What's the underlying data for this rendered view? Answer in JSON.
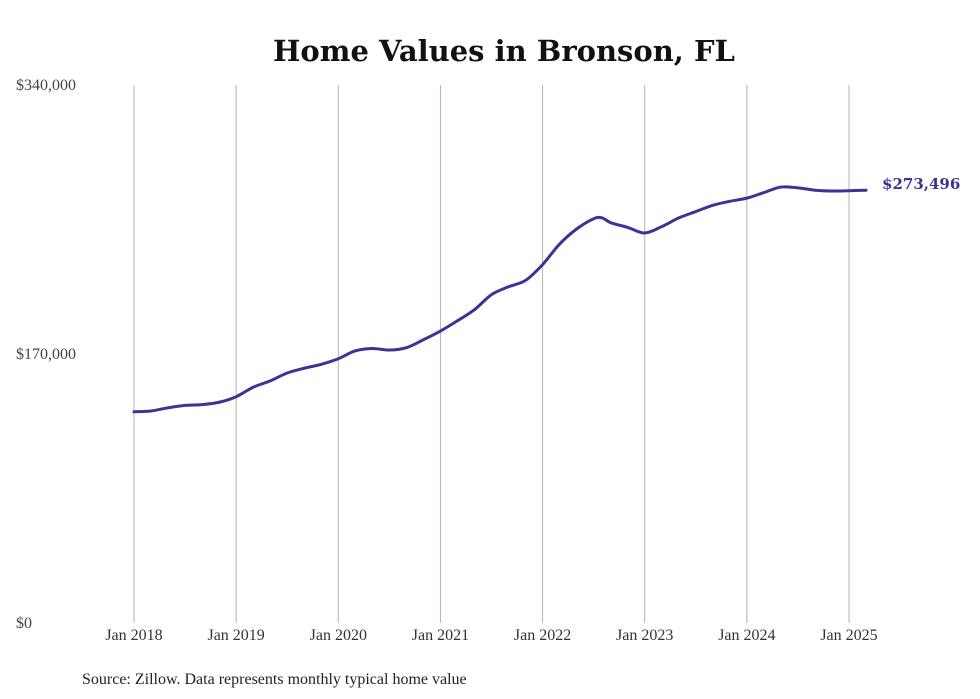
{
  "chart_data": {
    "type": "line",
    "title": "Home Values in Bronson, FL",
    "source_note": "Source: Zillow. Data represents monthly typical home value",
    "ylim": [
      0,
      340000
    ],
    "y_ticks": [
      "$0",
      "$170,000",
      "$340,000"
    ],
    "y_tick_values": [
      0,
      170000,
      340000
    ],
    "x_range": [
      "2018-01",
      "2025-03"
    ],
    "x_ticks": [
      "Jan 2018",
      "Jan 2019",
      "Jan 2020",
      "Jan 2021",
      "Jan 2022",
      "Jan 2023",
      "Jan 2024",
      "Jan 2025"
    ],
    "grid": "vertical",
    "line_color": "#3a3496",
    "end_label": "$273,496",
    "series": [
      {
        "points": [
          [
            "2018-01",
            133500
          ],
          [
            "2018-03",
            134000
          ],
          [
            "2018-05",
            136000
          ],
          [
            "2018-07",
            137500
          ],
          [
            "2018-09",
            138000
          ],
          [
            "2018-11",
            139500
          ],
          [
            "2019-01",
            143000
          ],
          [
            "2019-03",
            149000
          ],
          [
            "2019-05",
            153000
          ],
          [
            "2019-07",
            158000
          ],
          [
            "2019-09",
            161000
          ],
          [
            "2019-11",
            163500
          ],
          [
            "2020-01",
            167000
          ],
          [
            "2020-03",
            172000
          ],
          [
            "2020-05",
            173500
          ],
          [
            "2020-07",
            172500
          ],
          [
            "2020-09",
            174000
          ],
          [
            "2020-11",
            179000
          ],
          [
            "2021-01",
            184500
          ],
          [
            "2021-03",
            191000
          ],
          [
            "2021-05",
            198000
          ],
          [
            "2021-07",
            207500
          ],
          [
            "2021-09",
            212500
          ],
          [
            "2021-11",
            216500
          ],
          [
            "2022-01",
            226500
          ],
          [
            "2022-03",
            239500
          ],
          [
            "2022-05",
            249000
          ],
          [
            "2022-07",
            255500
          ],
          [
            "2022-08",
            256000
          ],
          [
            "2022-09",
            253000
          ],
          [
            "2022-11",
            250000
          ],
          [
            "2023-01",
            246500
          ],
          [
            "2023-03",
            250500
          ],
          [
            "2023-05",
            256000
          ],
          [
            "2023-07",
            260000
          ],
          [
            "2023-09",
            264000
          ],
          [
            "2023-11",
            266500
          ],
          [
            "2024-01",
            268500
          ],
          [
            "2024-03",
            272000
          ],
          [
            "2024-05",
            275500
          ],
          [
            "2024-07",
            275000
          ],
          [
            "2024-09",
            273500
          ],
          [
            "2024-11",
            273000
          ],
          [
            "2025-01",
            273200
          ],
          [
            "2025-03",
            273496
          ]
        ]
      }
    ]
  }
}
